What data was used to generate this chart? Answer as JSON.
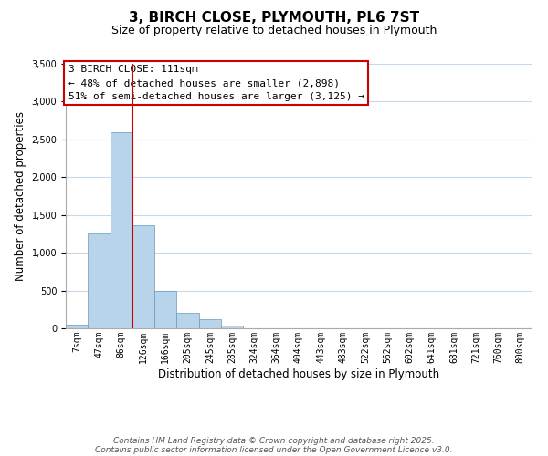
{
  "title": "3, BIRCH CLOSE, PLYMOUTH, PL6 7ST",
  "subtitle": "Size of property relative to detached houses in Plymouth",
  "xlabel": "Distribution of detached houses by size in Plymouth",
  "ylabel": "Number of detached properties",
  "bar_labels": [
    "7sqm",
    "47sqm",
    "86sqm",
    "126sqm",
    "166sqm",
    "205sqm",
    "245sqm",
    "285sqm",
    "324sqm",
    "364sqm",
    "404sqm",
    "443sqm",
    "483sqm",
    "522sqm",
    "562sqm",
    "602sqm",
    "641sqm",
    "681sqm",
    "721sqm",
    "760sqm",
    "800sqm"
  ],
  "bar_values": [
    50,
    1255,
    2600,
    1360,
    500,
    200,
    115,
    40,
    5,
    2,
    1,
    0,
    0,
    0,
    0,
    0,
    0,
    0,
    0,
    0,
    0
  ],
  "bar_color": "#b8d4ea",
  "bar_edge_color": "#6699bb",
  "vline_color": "#cc0000",
  "ylim": [
    0,
    3500
  ],
  "annotation_title": "3 BIRCH CLOSE: 111sqm",
  "annotation_line1": "← 48% of detached houses are smaller (2,898)",
  "annotation_line2": "51% of semi-detached houses are larger (3,125) →",
  "annotation_box_color": "#ffffff",
  "annotation_box_edge": "#cc0000",
  "footer_line1": "Contains HM Land Registry data © Crown copyright and database right 2025.",
  "footer_line2": "Contains public sector information licensed under the Open Government Licence v3.0.",
  "background_color": "#ffffff",
  "grid_color": "#c8daea",
  "title_fontsize": 11,
  "subtitle_fontsize": 9,
  "axis_label_fontsize": 8.5,
  "tick_fontsize": 7,
  "annotation_fontsize": 8,
  "footer_fontsize": 6.5
}
